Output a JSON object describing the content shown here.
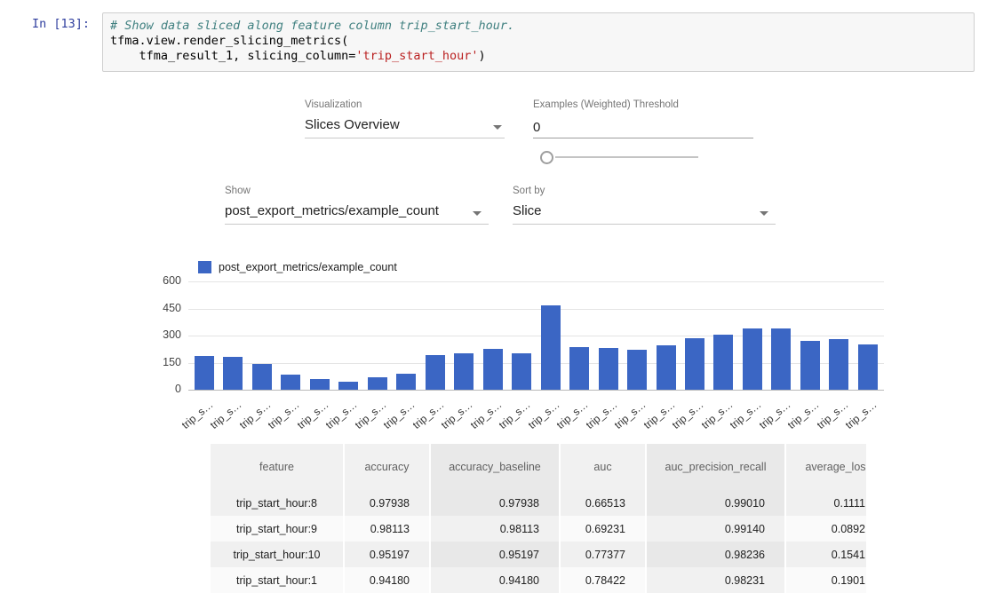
{
  "notebook": {
    "prompt": "In [13]:",
    "code": {
      "comment": "# Show data sliced along feature column trip_start_hour.",
      "line2": "tfma.view.render_slicing_metrics(",
      "line3_code": "    tfma_result_1, slicing_column=",
      "line3_string": "'trip_start_hour'",
      "line3_close": ")"
    }
  },
  "controls": {
    "visualization": {
      "label": "Visualization",
      "value": "Slices Overview"
    },
    "threshold": {
      "label": "Examples (Weighted) Threshold",
      "value": "0"
    },
    "show": {
      "label": "Show",
      "value": "post_export_metrics/example_count"
    },
    "sort_by": {
      "label": "Sort by",
      "value": "Slice"
    }
  },
  "chart_data": {
    "type": "bar",
    "title": "",
    "legend": "post_export_metrics/example_count",
    "legend_position": "top-left",
    "bar_color": "#3b66c4",
    "grid": true,
    "ylim": [
      0,
      600
    ],
    "yticks": [
      0,
      150,
      300,
      450,
      600
    ],
    "x_tick_label": "trip_s…",
    "values": [
      187,
      182,
      143,
      84,
      59,
      44,
      69,
      89,
      192,
      202,
      226,
      202,
      467,
      236,
      231,
      221,
      246,
      285,
      305,
      339,
      339,
      270,
      280,
      251
    ]
  },
  "table": {
    "headers": [
      "feature",
      "accuracy",
      "accuracy_baseline",
      "auc",
      "auc_precision_recall",
      "average_los"
    ],
    "rows": [
      [
        "trip_start_hour:8",
        "0.97938",
        "0.97938",
        "0.66513",
        "0.99010",
        "0.1111"
      ],
      [
        "trip_start_hour:9",
        "0.98113",
        "0.98113",
        "0.69231",
        "0.99140",
        "0.0892"
      ],
      [
        "trip_start_hour:10",
        "0.95197",
        "0.95197",
        "0.77377",
        "0.98236",
        "0.1541"
      ],
      [
        "trip_start_hour:1",
        "0.94180",
        "0.94180",
        "0.78422",
        "0.98231",
        "0.1901"
      ]
    ]
  }
}
